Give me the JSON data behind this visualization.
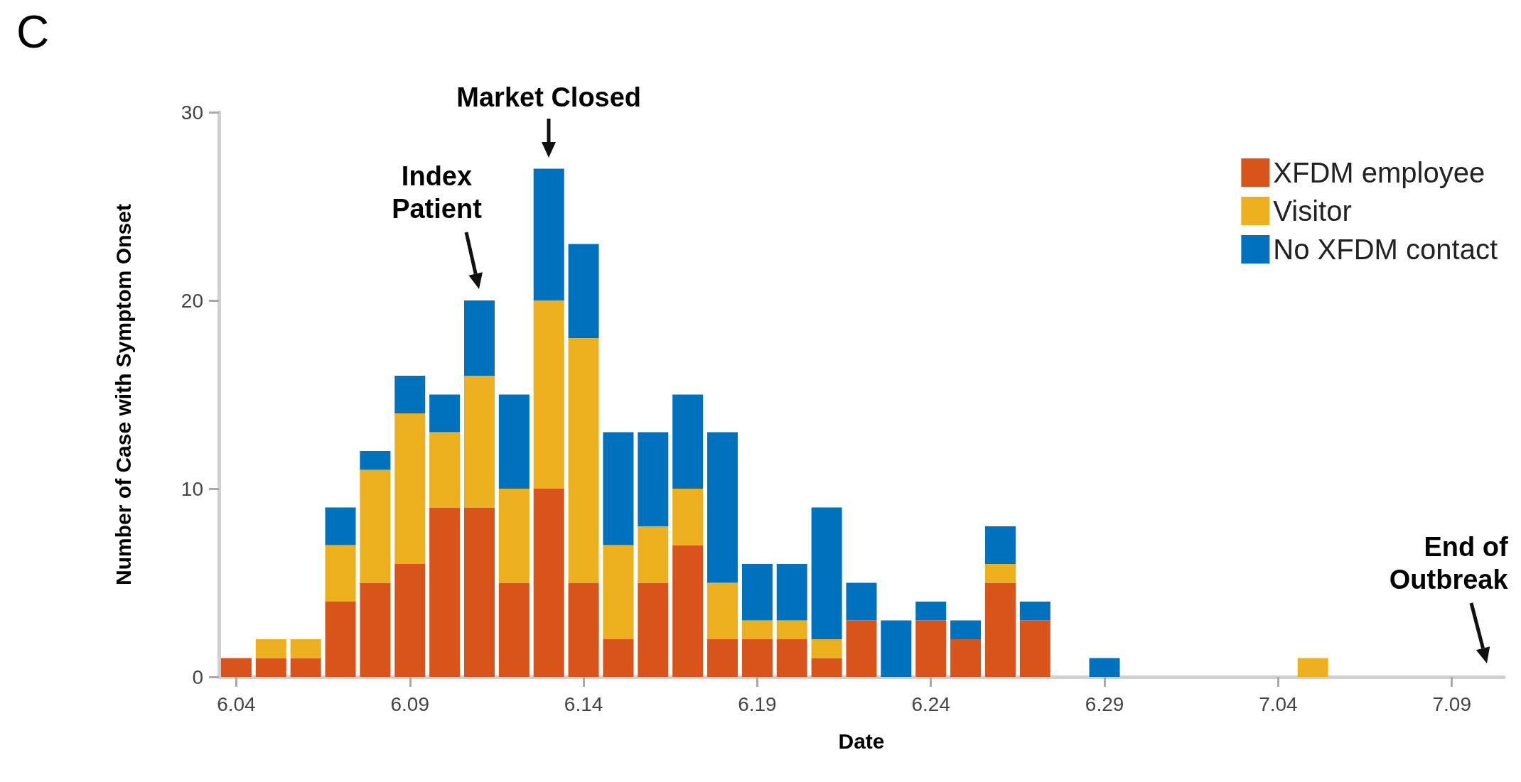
{
  "chart_data": {
    "type": "bar",
    "title": "C",
    "xlabel": "Date",
    "ylabel": "Number of Case with Symptom Onset",
    "categories": [
      "6.04",
      null,
      null,
      null,
      null,
      "6.09",
      null,
      null,
      null,
      null,
      "6.14",
      null,
      null,
      null,
      null,
      "6.19",
      null,
      null,
      null,
      null,
      "6.24",
      null,
      null,
      null,
      null,
      "6.29",
      null,
      null,
      null,
      null,
      "7.04",
      null,
      null,
      null,
      null,
      "7.09",
      null
    ],
    "series": [
      {
        "name": "XFDM employee",
        "color": "#d9541a",
        "values": [
          1,
          1,
          1,
          4,
          5,
          6,
          9,
          9,
          5,
          10,
          5,
          2,
          5,
          7,
          2,
          2,
          2,
          1,
          3,
          0,
          3,
          2,
          5,
          3,
          0,
          0,
          0,
          0,
          0,
          0,
          0,
          0,
          0,
          0,
          0,
          0,
          0
        ]
      },
      {
        "name": "Visitor",
        "color": "#ecb01f",
        "values": [
          0,
          1,
          1,
          3,
          6,
          8,
          4,
          7,
          5,
          10,
          13,
          5,
          3,
          3,
          3,
          1,
          1,
          1,
          0,
          0,
          0,
          0,
          1,
          0,
          0,
          0,
          0,
          0,
          0,
          0,
          0,
          1,
          0,
          0,
          0,
          0,
          0
        ]
      },
      {
        "name": "No XFDM contact",
        "color": "#0072bd",
        "values": [
          0,
          0,
          0,
          2,
          1,
          2,
          2,
          4,
          5,
          7,
          5,
          6,
          5,
          5,
          8,
          3,
          3,
          7,
          2,
          3,
          1,
          1,
          2,
          1,
          0,
          1,
          0,
          0,
          0,
          0,
          0,
          0,
          0,
          0,
          0,
          0,
          0
        ]
      }
    ],
    "stacked": true,
    "ylim": [
      0,
      30
    ],
    "yticks": [
      0,
      10,
      20,
      30
    ],
    "grid": false,
    "legend": "top right",
    "annotations": [
      "Index Patient",
      "Market Closed",
      "End of Outbreak"
    ]
  }
}
